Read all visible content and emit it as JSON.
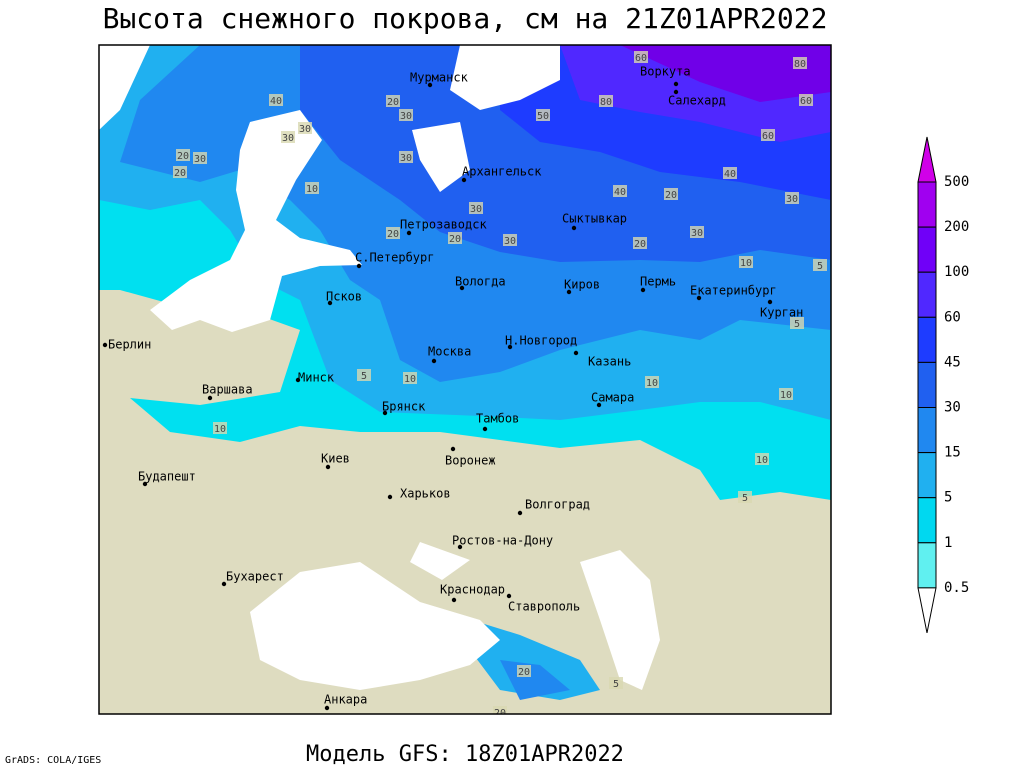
{
  "title": "Высота снежного покрова, см на 21Z01APR2022",
  "footer": "Модель GFS: 18Z01APR2022",
  "credit": "GrADS: COLA/IGES",
  "map": {
    "cities": [
      "Мурманск",
      "Воркута",
      "Салехард",
      "Архангельск",
      "Сыктывкар",
      "Петрозаводск",
      "С.Петербург",
      "Вологда",
      "Киров",
      "Пермь",
      "Екатеринбург",
      "Курган",
      "Псков",
      "Москва",
      "Н.Новгород",
      "Казань",
      "Минск",
      "Берлин",
      "Варшава",
      "Брянск",
      "Тамбов",
      "Самара",
      "Киев",
      "Воронеж",
      "Будапешт",
      "Харьков",
      "Волгоград",
      "Ростов-на-Дону",
      "Бухарест",
      "Краснодар",
      "Ставрополь",
      "Анкара"
    ],
    "contour_labels": [
      40,
      30,
      20,
      30,
      20,
      30,
      20,
      10,
      30,
      30,
      20,
      30,
      20,
      30,
      50,
      80,
      60,
      60,
      80,
      60,
      40,
      40,
      30,
      20,
      30,
      20,
      10,
      5,
      10,
      10,
      5,
      10,
      5,
      10,
      10,
      5,
      20,
      20,
      5
    ]
  },
  "legend": {
    "levels": [
      500,
      200,
      100,
      60,
      45,
      30,
      15,
      5,
      1,
      0.5
    ],
    "colors": [
      "#d000e8",
      "#a000f0",
      "#7000f8",
      "#5028ff",
      "#1e3cff",
      "#2060f0",
      "#2088f0",
      "#20b0f0",
      "#00d8f0",
      "#60f0f0",
      "#ffffff"
    ]
  }
}
